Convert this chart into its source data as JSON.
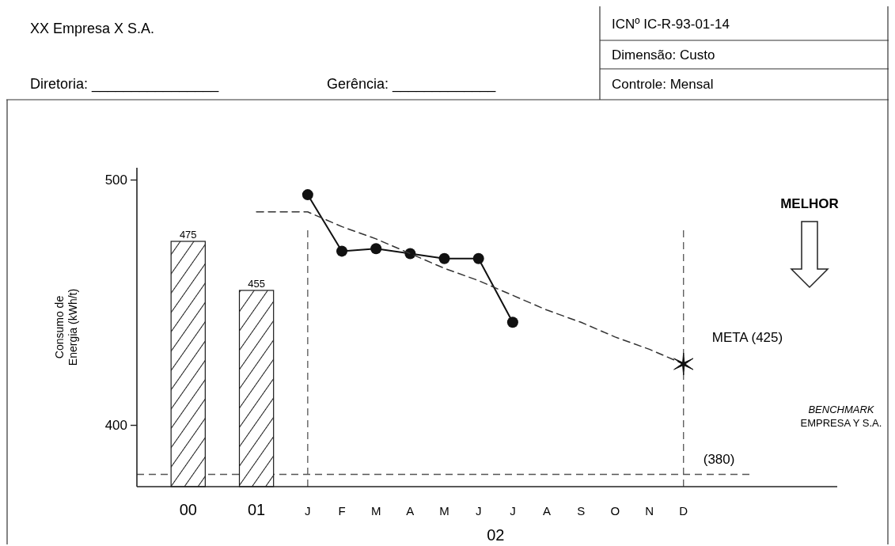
{
  "chart_data": {
    "type": "line",
    "title": "XX Empresa X S.A.",
    "ylabel": "Consumo de Energia (kWh/t)",
    "xlabel": "02",
    "categories": [
      "00",
      "01",
      "J",
      "F",
      "M",
      "A",
      "M",
      "J",
      "J",
      "A",
      "S",
      "O",
      "N",
      "D"
    ],
    "ylim": [
      375,
      505
    ],
    "yticks": [
      400,
      500
    ],
    "grid": false,
    "series": [
      {
        "type": "bar",
        "color": "#1a1a1a",
        "values": [
          475,
          455,
          null,
          null,
          null,
          null,
          null,
          null,
          null,
          null,
          null,
          null,
          null,
          null
        ],
        "value_labels": [
          "475",
          "455",
          null,
          null,
          null,
          null,
          null,
          null,
          null,
          null,
          null,
          null,
          null,
          null
        ]
      },
      {
        "color": "#111111",
        "marker": "circle",
        "values": [
          null,
          null,
          494,
          471,
          472,
          470,
          468,
          468,
          442,
          null,
          null,
          null,
          null,
          null
        ]
      },
      {
        "type": "line",
        "color": "#333333",
        "line_style": "dashed",
        "values": [
          null,
          487,
          487,
          481,
          476,
          470,
          464,
          459,
          453,
          447,
          442,
          436,
          431,
          425
        ]
      },
      {
        "type": "scatter",
        "color": "#111111",
        "marker": "cross",
        "values": [
          null,
          null,
          null,
          null,
          null,
          null,
          null,
          null,
          null,
          null,
          null,
          null,
          null,
          425
        ]
      }
    ],
    "ref_lines": [
      {
        "axis": "y",
        "value": 380,
        "label": "(380)",
        "line_style": "dashed",
        "color": "#555555"
      },
      {
        "axis": "x",
        "value": "J",
        "line_style": "dashed",
        "color": "#555555"
      },
      {
        "axis": "x",
        "value": "D",
        "line_style": "dashed",
        "color": "#555555"
      }
    ],
    "annotations": [
      "Diretoria: ________________",
      "Gerência: _____________",
      "ICNº IC-R-93-01-14",
      "Dimensão: Custo",
      "Controle: Mensal",
      "MELHOR",
      "BENCHMARK EMPRESA Y S.A.",
      {
        "text": "META (425)",
        "x": "D",
        "y": 425
      }
    ]
  }
}
